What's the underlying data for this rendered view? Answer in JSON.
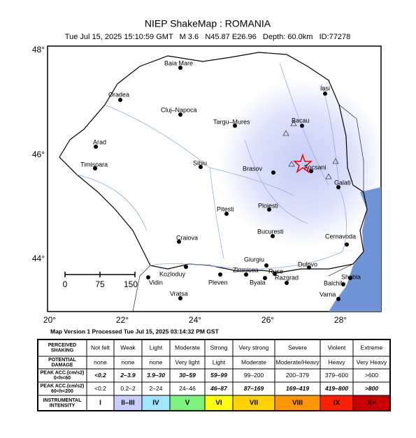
{
  "header": {
    "title": "NIEP ShakeMap : ROMANIA",
    "subtitle": "Tue Jul 15, 2025 15:10:59 GMT   M 3.6   N45.87 E26.96   Depth: 60.0km   ID:77278"
  },
  "map": {
    "lat_labels": [
      "48°",
      "46°",
      "44°"
    ],
    "lon_labels": [
      "20°",
      "22°",
      "24°",
      "26°",
      "28°"
    ],
    "scale_labels": [
      "0",
      "75",
      "150"
    ],
    "cities": [
      "Baia Mare",
      "Oradea",
      "Cluj–Napoca",
      "Targu–Mures",
      "Arad",
      "Timisoara",
      "Sibiu",
      "Brasov",
      "Bacau",
      "Iasi",
      "Focsani",
      "Galati",
      "Pitesti",
      "Ploiesti",
      "Bucuresti",
      "Craiova",
      "Cernavoda",
      "Giurgiu",
      "Zimnicea",
      "Ruse",
      "Dulovo",
      "Kozloduy",
      "Vidin",
      "Pleven",
      "Byala",
      "Razgrad",
      "Balchik",
      "Shabla",
      "Varna",
      "Vratsa"
    ]
  },
  "footer": "Map Version 1 Processed Tue Jul 15, 2025 03:14:32 PM GST",
  "table": {
    "rows": [
      {
        "label": [
          "PERCEIVED",
          "SHAKING"
        ],
        "cells": [
          "Not felt",
          "Weak",
          "Light",
          "Moderate",
          "Strong",
          "Very strong",
          "Severe",
          "Violent",
          "Extreme"
        ]
      },
      {
        "label": [
          "POTENTIAL",
          "DAMAGE"
        ],
        "cells": [
          "none",
          "none",
          "none",
          "Very light",
          "Light",
          "Moderate",
          "Moderate/Heavy",
          "Heavy",
          "Very Heavy"
        ]
      },
      {
        "label": [
          "PEAK ACC.(cm/s2)",
          "0<h<60"
        ],
        "cells": [
          "<0.2",
          "2–3.9",
          "3.9–30",
          "30–59",
          "59–99",
          "99–200",
          "200–379",
          "379–600",
          ">600"
        ]
      },
      {
        "label": [
          "PEAK ACC.(cm/s2)",
          "60<h<200"
        ],
        "cells": [
          "<0.2",
          "0.2–2",
          "2–24",
          "24–46",
          "46–87",
          "87–169",
          "169–419",
          "419–800",
          ">800"
        ]
      },
      {
        "label": [
          "INSTRUMENTAL",
          "INTENSITY"
        ],
        "cells": [
          "I",
          "II–III",
          "IV",
          "V",
          "VI",
          "VII",
          "VIII",
          "IX",
          "X+"
        ]
      }
    ],
    "intensity_colors": [
      "#ffffff",
      "#c8cfff",
      "#a0e6ff",
      "#7cf27c",
      "#ffff00",
      "#ffd200",
      "#ff9600",
      "#ff2000",
      "#c80000"
    ]
  }
}
